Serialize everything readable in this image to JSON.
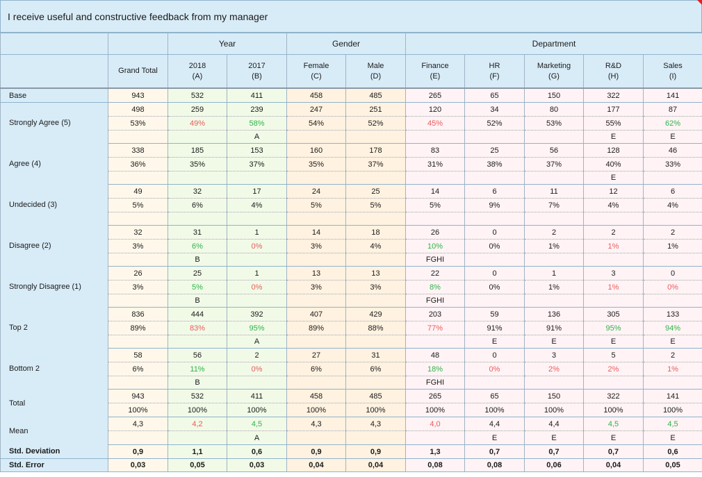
{
  "title": "I receive useful and constructive feedback from my manager",
  "groups": {
    "year": "Year",
    "gender": "Gender",
    "department": "Department"
  },
  "columns": [
    {
      "name": "Grand Total",
      "letter": ""
    },
    {
      "name": "2018",
      "letter": "(A)"
    },
    {
      "name": "2017",
      "letter": "(B)"
    },
    {
      "name": "Female",
      "letter": "(C)"
    },
    {
      "name": "Male",
      "letter": "(D)"
    },
    {
      "name": "Finance",
      "letter": "(E)"
    },
    {
      "name": "HR",
      "letter": "(F)"
    },
    {
      "name": "Marketing",
      "letter": "(G)"
    },
    {
      "name": "R&D",
      "letter": "(H)"
    },
    {
      "name": "Sales",
      "letter": "(I)"
    }
  ],
  "rows": [
    {
      "label": "Base",
      "lines": [
        {
          "cells": [
            "943",
            "532",
            "411",
            "458",
            "485",
            "265",
            "65",
            "150",
            "322",
            "141"
          ]
        }
      ]
    },
    {
      "label": "Strongly Agree (5)",
      "lines": [
        {
          "cells": [
            "498",
            "259",
            "239",
            "247",
            "251",
            "120",
            "34",
            "80",
            "177",
            "87"
          ]
        },
        {
          "cells": [
            "53%",
            "49%",
            "58%",
            "54%",
            "52%",
            "45%",
            "52%",
            "53%",
            "55%",
            "62%"
          ],
          "colors": [
            "",
            "red",
            "grn",
            "",
            "",
            "red",
            "",
            "",
            "",
            "grn"
          ]
        },
        {
          "cells": [
            "",
            "",
            "A",
            "",
            "",
            "",
            "",
            "",
            "E",
            "E"
          ]
        }
      ]
    },
    {
      "label": "Agree (4)",
      "lines": [
        {
          "cells": [
            "338",
            "185",
            "153",
            "160",
            "178",
            "83",
            "25",
            "56",
            "128",
            "46"
          ]
        },
        {
          "cells": [
            "36%",
            "35%",
            "37%",
            "35%",
            "37%",
            "31%",
            "38%",
            "37%",
            "40%",
            "33%"
          ]
        },
        {
          "cells": [
            "",
            "",
            "",
            "",
            "",
            "",
            "",
            "",
            "E",
            ""
          ]
        }
      ]
    },
    {
      "label": "Undecided (3)",
      "lines": [
        {
          "cells": [
            "49",
            "32",
            "17",
            "24",
            "25",
            "14",
            "6",
            "11",
            "12",
            "6"
          ]
        },
        {
          "cells": [
            "5%",
            "6%",
            "4%",
            "5%",
            "5%",
            "5%",
            "9%",
            "7%",
            "4%",
            "4%"
          ]
        },
        {
          "cells": [
            "",
            "",
            "",
            "",
            "",
            "",
            "",
            "",
            "",
            ""
          ]
        }
      ]
    },
    {
      "label": "Disagree (2)",
      "lines": [
        {
          "cells": [
            "32",
            "31",
            "1",
            "14",
            "18",
            "26",
            "0",
            "2",
            "2",
            "2"
          ]
        },
        {
          "cells": [
            "3%",
            "6%",
            "0%",
            "3%",
            "4%",
            "10%",
            "0%",
            "1%",
            "1%",
            "1%"
          ],
          "colors": [
            "",
            "grn",
            "red",
            "",
            "",
            "grn",
            "",
            "",
            "red",
            ""
          ]
        },
        {
          "cells": [
            "",
            "B",
            "",
            "",
            "",
            "FGHI",
            "",
            "",
            "",
            ""
          ]
        }
      ]
    },
    {
      "label": "Strongly Disagree (1)",
      "lines": [
        {
          "cells": [
            "26",
            "25",
            "1",
            "13",
            "13",
            "22",
            "0",
            "1",
            "3",
            "0"
          ]
        },
        {
          "cells": [
            "3%",
            "5%",
            "0%",
            "3%",
            "3%",
            "8%",
            "0%",
            "1%",
            "1%",
            "0%"
          ],
          "colors": [
            "",
            "grn",
            "red",
            "",
            "",
            "grn",
            "",
            "",
            "red",
            "red"
          ]
        },
        {
          "cells": [
            "",
            "B",
            "",
            "",
            "",
            "FGHI",
            "",
            "",
            "",
            ""
          ]
        }
      ]
    },
    {
      "label": "Top 2",
      "lines": [
        {
          "cells": [
            "836",
            "444",
            "392",
            "407",
            "429",
            "203",
            "59",
            "136",
            "305",
            "133"
          ]
        },
        {
          "cells": [
            "89%",
            "83%",
            "95%",
            "89%",
            "88%",
            "77%",
            "91%",
            "91%",
            "95%",
            "94%"
          ],
          "colors": [
            "",
            "red",
            "grn",
            "",
            "",
            "red",
            "",
            "",
            "grn",
            "grn"
          ]
        },
        {
          "cells": [
            "",
            "",
            "A",
            "",
            "",
            "",
            "E",
            "E",
            "E",
            "E"
          ]
        }
      ]
    },
    {
      "label": "Bottom 2",
      "lines": [
        {
          "cells": [
            "58",
            "56",
            "2",
            "27",
            "31",
            "48",
            "0",
            "3",
            "5",
            "2"
          ]
        },
        {
          "cells": [
            "6%",
            "11%",
            "0%",
            "6%",
            "6%",
            "18%",
            "0%",
            "2%",
            "2%",
            "1%"
          ],
          "colors": [
            "",
            "grn",
            "red",
            "",
            "",
            "grn",
            "red",
            "red",
            "red",
            "red"
          ]
        },
        {
          "cells": [
            "",
            "B",
            "",
            "",
            "",
            "FGHI",
            "",
            "",
            "",
            ""
          ]
        }
      ]
    },
    {
      "label": "Total",
      "lines": [
        {
          "cells": [
            "943",
            "532",
            "411",
            "458",
            "485",
            "265",
            "65",
            "150",
            "322",
            "141"
          ]
        },
        {
          "cells": [
            "100%",
            "100%",
            "100%",
            "100%",
            "100%",
            "100%",
            "100%",
            "100%",
            "100%",
            "100%"
          ]
        }
      ]
    },
    {
      "label": "Mean",
      "lines": [
        {
          "cells": [
            "4,3",
            "4,2",
            "4,5",
            "4,3",
            "4,3",
            "4,0",
            "4,4",
            "4,4",
            "4,5",
            "4,5"
          ],
          "colors": [
            "",
            "red",
            "grn",
            "",
            "",
            "red",
            "",
            "",
            "grn",
            "grn"
          ]
        },
        {
          "cells": [
            "",
            "",
            "A",
            "",
            "",
            "",
            "E",
            "E",
            "E",
            "E"
          ]
        }
      ]
    },
    {
      "label": "Std. Deviation",
      "bold": true,
      "lines": [
        {
          "cells": [
            "0,9",
            "1,1",
            "0,6",
            "0,9",
            "0,9",
            "1,3",
            "0,7",
            "0,7",
            "0,7",
            "0,6"
          ]
        }
      ]
    },
    {
      "label": "Std. Error",
      "bold": true,
      "lines": [
        {
          "cells": [
            "0,03",
            "0,05",
            "0,03",
            "0,04",
            "0,04",
            "0,08",
            "0,08",
            "0,06",
            "0,04",
            "0,05"
          ]
        }
      ]
    }
  ],
  "colors": {
    "header_bg": "#d8ecf8",
    "positive": "#2fb34a",
    "negative": "#ea5b5b",
    "grand_total_bg": "#fff8ea",
    "year_bg": "#f1fae7",
    "gender_bg": "#fff2e0",
    "department_bg": "#fff3f5"
  }
}
